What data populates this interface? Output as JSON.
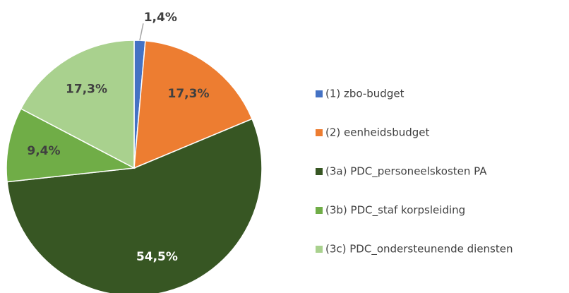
{
  "chart_data": {
    "type": "pie",
    "categories": [
      "(1) zbo-budget",
      "(2) eenheidsbudget",
      "(3a) PDC_personeelskosten PA",
      "(3b) PDC_staf korpsleiding",
      "(3c) PDC_ondersteunende diensten"
    ],
    "values": [
      1.4,
      17.3,
      54.5,
      9.4,
      17.3
    ],
    "value_labels": [
      "1,4%",
      "17,3%",
      "54,5%",
      "9,4%",
      "17,3%"
    ],
    "colors": [
      "#4472c4",
      "#ed7d31",
      "#375623",
      "#70ad47",
      "#a9d18e"
    ],
    "legend": "right"
  }
}
